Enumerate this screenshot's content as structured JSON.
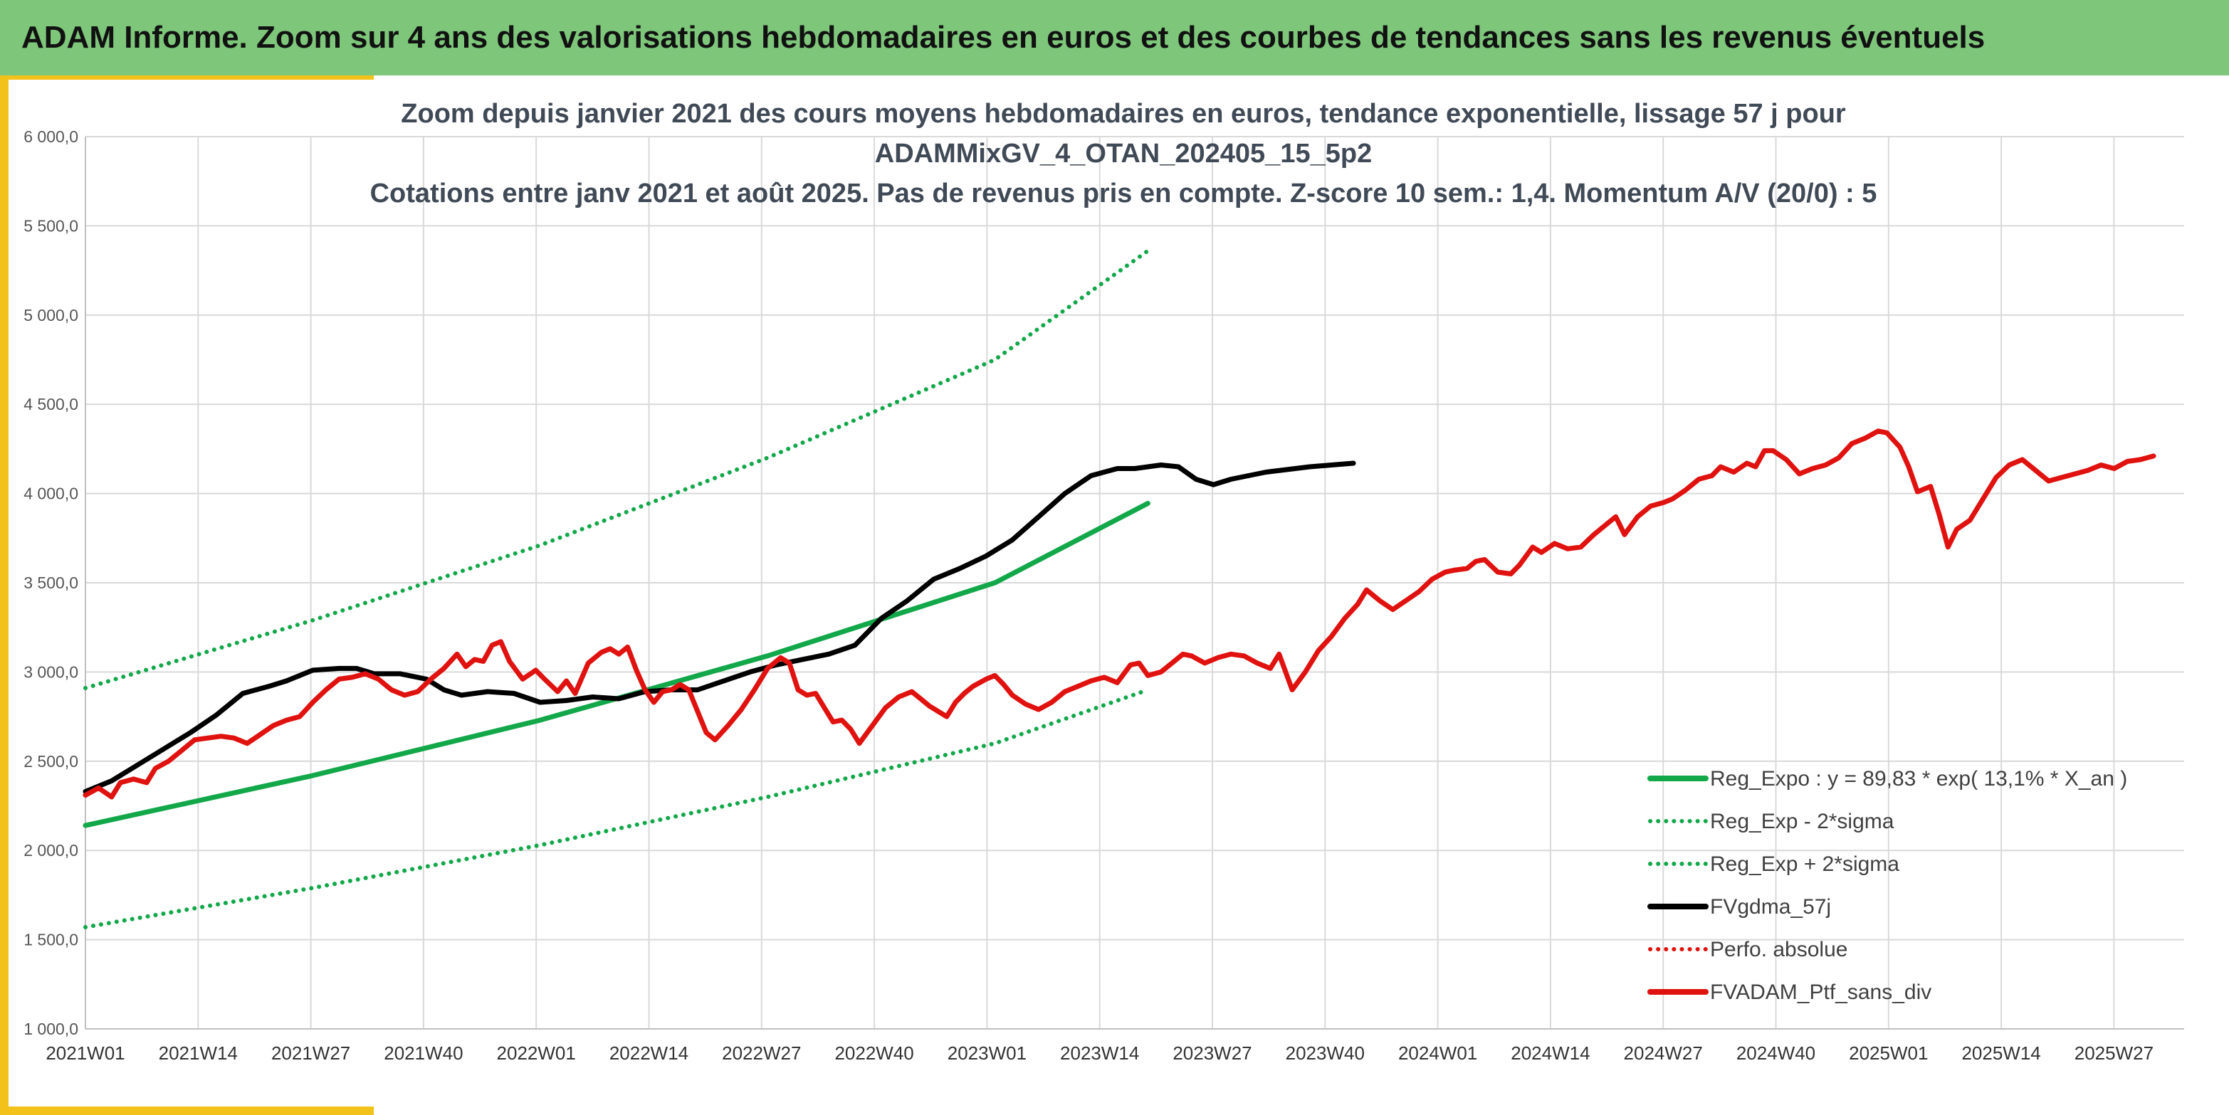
{
  "header": {
    "title": "ADAM Informe. Zoom sur 4 ans des valorisations hebdomadaires en euros et des courbes de tendances sans les revenus éventuels"
  },
  "chart_data": {
    "type": "line",
    "title_lines": [
      "Zoom depuis janvier 2021 des cours moyens hebdomadaires en euros, tendance exponentielle, lissage 57 j pour",
      "ADAMMixGV_4_OTAN_202405_15_5p2",
      "Cotations entre janv 2021 et août 2025. Pas de revenus pris en compte. Z-score 10 sem.: 1,4. Momentum A/V (20/0) : 5"
    ],
    "ylim": [
      1000,
      6000
    ],
    "y_ticks": [
      "1 000,0",
      "1 500,0",
      "2 000,0",
      "2 500,0",
      "3 000,0",
      "3 500,0",
      "4 000,0",
      "4 500,0",
      "5 000,0",
      "5 500,0",
      "6 000,0"
    ],
    "x_ticks": [
      "2021W01",
      "2021W14",
      "2021W27",
      "2021W40",
      "2022W01",
      "2022W14",
      "2022W27",
      "2022W40",
      "2023W01",
      "2023W14",
      "2023W27",
      "2023W40",
      "2024W01",
      "2024W14",
      "2024W27",
      "2024W40",
      "2025W01",
      "2025W14",
      "2025W27"
    ],
    "x_weeks": 244,
    "grid": true,
    "legend_position": "bottom-right",
    "series": [
      {
        "name": "Reg_Expo : y = 89,83 * exp( 13,1% *  X_an )",
        "color": "#12a84a",
        "style": "solid",
        "points": [
          [
            0,
            2140
          ],
          [
            52,
            2420
          ],
          [
            104,
            2730
          ],
          [
            156,
            3090
          ],
          [
            208,
            3500
          ],
          [
            243,
            3945
          ]
        ]
      },
      {
        "name": "Reg_Exp - 2*sigma",
        "color": "#12a84a",
        "style": "dotted",
        "points": [
          [
            0,
            1570
          ],
          [
            52,
            1790
          ],
          [
            104,
            2030
          ],
          [
            156,
            2300
          ],
          [
            208,
            2600
          ],
          [
            243,
            2900
          ]
        ]
      },
      {
        "name": "Reg_Exp + 2*sigma",
        "color": "#12a84a",
        "style": "dotted",
        "points": [
          [
            0,
            2910
          ],
          [
            52,
            3290
          ],
          [
            104,
            3710
          ],
          [
            156,
            4200
          ],
          [
            208,
            4750
          ],
          [
            243,
            5360
          ]
        ]
      },
      {
        "name": "FVgdma_57j",
        "color": "#000000",
        "style": "solid",
        "points": [
          [
            0,
            2330
          ],
          [
            6,
            2390
          ],
          [
            12,
            2480
          ],
          [
            18,
            2570
          ],
          [
            24,
            2660
          ],
          [
            30,
            2760
          ],
          [
            36,
            2880
          ],
          [
            42,
            2920
          ],
          [
            46,
            2950
          ],
          [
            52,
            3010
          ],
          [
            58,
            3020
          ],
          [
            62,
            3020
          ],
          [
            66,
            2990
          ],
          [
            72,
            2990
          ],
          [
            78,
            2960
          ],
          [
            82,
            2900
          ],
          [
            86,
            2870
          ],
          [
            92,
            2890
          ],
          [
            98,
            2880
          ],
          [
            104,
            2830
          ],
          [
            110,
            2840
          ],
          [
            116,
            2860
          ],
          [
            122,
            2850
          ],
          [
            128,
            2890
          ],
          [
            134,
            2900
          ],
          [
            140,
            2900
          ],
          [
            146,
            2950
          ],
          [
            152,
            3000
          ],
          [
            158,
            3040
          ],
          [
            164,
            3070
          ],
          [
            170,
            3100
          ],
          [
            176,
            3150
          ],
          [
            182,
            3300
          ],
          [
            188,
            3400
          ],
          [
            194,
            3520
          ],
          [
            200,
            3580
          ],
          [
            206,
            3650
          ],
          [
            212,
            3740
          ],
          [
            218,
            3870
          ],
          [
            224,
            4000
          ],
          [
            230,
            4100
          ],
          [
            236,
            4140
          ],
          [
            240,
            4140
          ],
          [
            246,
            4160
          ],
          [
            250,
            4150
          ],
          [
            254,
            4080
          ],
          [
            258,
            4050
          ],
          [
            262,
            4080
          ],
          [
            270,
            4120
          ],
          [
            280,
            4150
          ],
          [
            290,
            4170
          ]
        ]
      },
      {
        "name": "Perfo. absolue",
        "color": "#e0120f",
        "style": "dotted",
        "points": []
      },
      {
        "name": "FVADAM_Ptf_sans_div",
        "color": "#e0120f",
        "style": "solid",
        "points": [
          [
            0,
            2310
          ],
          [
            3,
            2350
          ],
          [
            6,
            2300
          ],
          [
            8,
            2380
          ],
          [
            11,
            2400
          ],
          [
            14,
            2380
          ],
          [
            16,
            2460
          ],
          [
            19,
            2500
          ],
          [
            22,
            2560
          ],
          [
            25,
            2620
          ],
          [
            28,
            2630
          ],
          [
            31,
            2640
          ],
          [
            34,
            2630
          ],
          [
            37,
            2600
          ],
          [
            40,
            2650
          ],
          [
            43,
            2700
          ],
          [
            46,
            2730
          ],
          [
            49,
            2750
          ],
          [
            52,
            2830
          ],
          [
            55,
            2900
          ],
          [
            58,
            2960
          ],
          [
            61,
            2970
          ],
          [
            64,
            2990
          ],
          [
            67,
            2960
          ],
          [
            70,
            2900
          ],
          [
            73,
            2870
          ],
          [
            76,
            2890
          ],
          [
            79,
            2960
          ],
          [
            82,
            3020
          ],
          [
            85,
            3100
          ],
          [
            87,
            3030
          ],
          [
            89,
            3070
          ],
          [
            91,
            3060
          ],
          [
            93,
            3150
          ],
          [
            95,
            3170
          ],
          [
            97,
            3060
          ],
          [
            100,
            2960
          ],
          [
            103,
            3010
          ],
          [
            105,
            2960
          ],
          [
            108,
            2890
          ],
          [
            110,
            2950
          ],
          [
            112,
            2880
          ],
          [
            115,
            3050
          ],
          [
            118,
            3110
          ],
          [
            120,
            3130
          ],
          [
            122,
            3100
          ],
          [
            124,
            3140
          ],
          [
            126,
            3010
          ],
          [
            128,
            2900
          ],
          [
            130,
            2830
          ],
          [
            132,
            2890
          ],
          [
            134,
            2900
          ],
          [
            136,
            2930
          ],
          [
            138,
            2900
          ],
          [
            140,
            2780
          ],
          [
            142,
            2660
          ],
          [
            144,
            2620
          ],
          [
            147,
            2700
          ],
          [
            150,
            2790
          ],
          [
            153,
            2900
          ],
          [
            156,
            3020
          ],
          [
            159,
            3080
          ],
          [
            161,
            3050
          ],
          [
            163,
            2900
          ],
          [
            165,
            2870
          ],
          [
            167,
            2880
          ],
          [
            169,
            2800
          ],
          [
            171,
            2720
          ],
          [
            173,
            2730
          ],
          [
            175,
            2680
          ],
          [
            177,
            2600
          ],
          [
            180,
            2700
          ],
          [
            183,
            2800
          ],
          [
            186,
            2860
          ],
          [
            189,
            2890
          ],
          [
            191,
            2850
          ],
          [
            193,
            2810
          ],
          [
            195,
            2780
          ],
          [
            197,
            2750
          ],
          [
            199,
            2830
          ],
          [
            201,
            2880
          ],
          [
            203,
            2920
          ],
          [
            206,
            2960
          ],
          [
            208,
            2980
          ],
          [
            210,
            2930
          ],
          [
            212,
            2870
          ],
          [
            215,
            2820
          ],
          [
            218,
            2790
          ],
          [
            221,
            2830
          ],
          [
            224,
            2890
          ],
          [
            227,
            2920
          ],
          [
            230,
            2950
          ],
          [
            233,
            2970
          ],
          [
            236,
            2940
          ],
          [
            239,
            3040
          ],
          [
            241,
            3050
          ],
          [
            243,
            2980
          ],
          [
            246,
            3000
          ],
          [
            249,
            3060
          ],
          [
            251,
            3100
          ],
          [
            253,
            3090
          ],
          [
            256,
            3050
          ],
          [
            259,
            3080
          ],
          [
            262,
            3100
          ],
          [
            265,
            3090
          ],
          [
            268,
            3050
          ],
          [
            271,
            3020
          ],
          [
            273,
            3100
          ],
          [
            276,
            2900
          ],
          [
            279,
            3000
          ],
          [
            282,
            3120
          ],
          [
            285,
            3200
          ],
          [
            288,
            3300
          ],
          [
            291,
            3380
          ],
          [
            293,
            3460
          ],
          [
            296,
            3400
          ],
          [
            299,
            3350
          ],
          [
            302,
            3400
          ],
          [
            305,
            3450
          ],
          [
            308,
            3520
          ],
          [
            311,
            3560
          ],
          [
            313,
            3570
          ],
          [
            316,
            3580
          ],
          [
            318,
            3620
          ],
          [
            320,
            3630
          ],
          [
            323,
            3560
          ],
          [
            326,
            3550
          ],
          [
            328,
            3600
          ],
          [
            331,
            3700
          ],
          [
            333,
            3670
          ],
          [
            336,
            3720
          ],
          [
            339,
            3690
          ],
          [
            342,
            3700
          ],
          [
            345,
            3770
          ],
          [
            348,
            3830
          ],
          [
            350,
            3870
          ],
          [
            352,
            3770
          ],
          [
            355,
            3870
          ],
          [
            358,
            3930
          ],
          [
            361,
            3950
          ],
          [
            363,
            3970
          ],
          [
            366,
            4020
          ],
          [
            369,
            4080
          ],
          [
            372,
            4100
          ],
          [
            374,
            4150
          ],
          [
            377,
            4120
          ],
          [
            380,
            4170
          ],
          [
            382,
            4150
          ],
          [
            384,
            4240
          ],
          [
            386,
            4240
          ],
          [
            389,
            4190
          ],
          [
            392,
            4110
          ],
          [
            395,
            4140
          ],
          [
            398,
            4160
          ],
          [
            401,
            4200
          ],
          [
            404,
            4280
          ],
          [
            407,
            4310
          ],
          [
            410,
            4350
          ],
          [
            412,
            4340
          ],
          [
            415,
            4260
          ],
          [
            417,
            4150
          ],
          [
            419,
            4010
          ],
          [
            422,
            4040
          ],
          [
            424,
            3880
          ],
          [
            426,
            3700
          ],
          [
            428,
            3800
          ],
          [
            431,
            3850
          ],
          [
            434,
            3970
          ],
          [
            437,
            4090
          ],
          [
            440,
            4160
          ],
          [
            443,
            4190
          ],
          [
            446,
            4130
          ],
          [
            449,
            4070
          ],
          [
            452,
            4090
          ],
          [
            455,
            4110
          ],
          [
            458,
            4130
          ],
          [
            461,
            4160
          ],
          [
            464,
            4140
          ],
          [
            467,
            4180
          ],
          [
            470,
            4190
          ],
          [
            473,
            4210
          ]
        ]
      }
    ]
  }
}
